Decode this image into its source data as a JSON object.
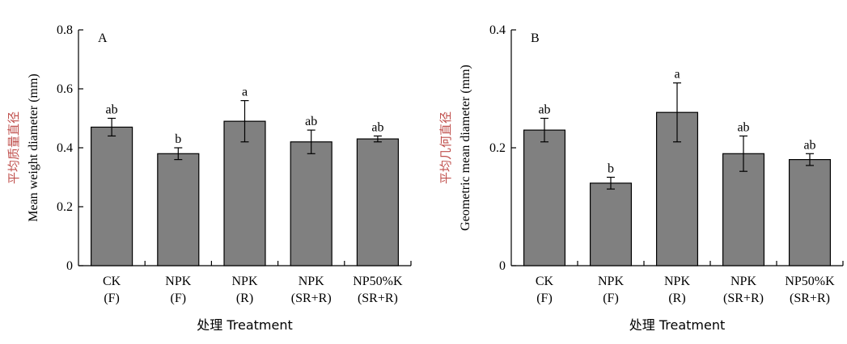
{
  "chart_data": [
    {
      "type": "bar",
      "panel_label": "A",
      "categories": [
        {
          "line1": "CK",
          "line2": "(F)"
        },
        {
          "line1": "NPK",
          "line2": "(F)"
        },
        {
          "line1": "NPK",
          "line2": "(R)"
        },
        {
          "line1": "NPK",
          "line2": "(SR+R)"
        },
        {
          "line1": "NP50%K",
          "line2": "(SR+R)"
        }
      ],
      "values": [
        0.47,
        0.38,
        0.49,
        0.42,
        0.43
      ],
      "errors": [
        0.03,
        0.02,
        0.07,
        0.04,
        0.01
      ],
      "significance": [
        "ab",
        "b",
        "a",
        "ab",
        "ab"
      ],
      "ylabel_cn": "平均质量直径",
      "ylabel_en": "Mean weight diameter (mm)",
      "xlabel": "处理 Treatment",
      "ylim": [
        0,
        0.8
      ],
      "yticks": [
        "0",
        "0.2",
        "0.4",
        "0.6",
        "0.8"
      ],
      "ytick_values": [
        0,
        0.2,
        0.4,
        0.6,
        0.8
      ],
      "bar_color": "#808080"
    },
    {
      "type": "bar",
      "panel_label": "B",
      "categories": [
        {
          "line1": "CK",
          "line2": "(F)"
        },
        {
          "line1": "NPK",
          "line2": "(F)"
        },
        {
          "line1": "NPK",
          "line2": "(R)"
        },
        {
          "line1": "NPK",
          "line2": "(SR+R)"
        },
        {
          "line1": "NP50%K",
          "line2": "(SR+R)"
        }
      ],
      "values": [
        0.23,
        0.14,
        0.26,
        0.19,
        0.18
      ],
      "errors": [
        0.02,
        0.01,
        0.05,
        0.03,
        0.01
      ],
      "significance": [
        "ab",
        "b",
        "a",
        "ab",
        "ab"
      ],
      "ylabel_cn": "平均几何直径",
      "ylabel_en": "Geometric mean diameter (mm)",
      "xlabel": "处理 Treatment",
      "ylim": [
        0,
        0.4
      ],
      "yticks": [
        "0",
        "0.2",
        "0.4"
      ],
      "ytick_values": [
        0,
        0.2,
        0.4
      ],
      "bar_color": "#808080"
    }
  ]
}
